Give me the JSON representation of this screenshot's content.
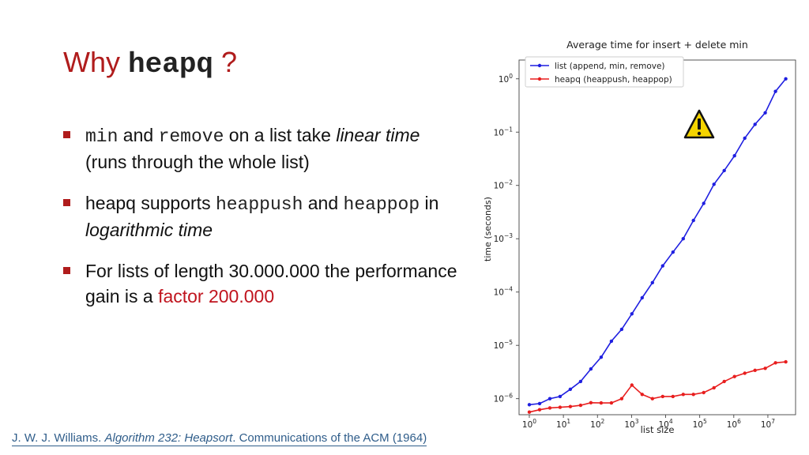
{
  "title": {
    "prefix": "Why ",
    "code": "heapq",
    "suffix": " ?"
  },
  "bullets": [
    {
      "parts": [
        {
          "text": "min",
          "style": "mono"
        },
        {
          "text": " and ",
          "style": "plain"
        },
        {
          "text": "remove",
          "style": "mono"
        },
        {
          "text": " on a list take ",
          "style": "plain"
        },
        {
          "text": "linear time",
          "style": "italic"
        },
        {
          "text": " (runs through the whole list)",
          "style": "plain"
        }
      ]
    },
    {
      "parts": [
        {
          "text": "heapq supports ",
          "style": "plain"
        },
        {
          "text": "heappush",
          "style": "mono"
        },
        {
          "text": " and ",
          "style": "plain"
        },
        {
          "text": "heappop",
          "style": "mono"
        },
        {
          "text": " in ",
          "style": "plain"
        },
        {
          "text": "logarithmic time",
          "style": "italic"
        }
      ]
    },
    {
      "parts": [
        {
          "text": "For lists of length 30.000.000 the performance gain is a ",
          "style": "plain"
        },
        {
          "text": "factor 200.000",
          "style": "accent"
        }
      ]
    }
  ],
  "citation": {
    "author": "J. W. J. Williams. ",
    "work": "Algorithm 232: Heapsort",
    "rest": ". Communications of the ACM (1964)"
  },
  "warning_icon": "warning-triangle-icon",
  "colors": {
    "title": "#b01c1c",
    "accent": "#c0141e",
    "list_series": "#1f1fe0",
    "heapq_series": "#e81e1e"
  },
  "chart_data": {
    "type": "line",
    "title": "Average time for insert + delete min",
    "xlabel": "list size",
    "ylabel": "time (seconds)",
    "xscale": "log",
    "yscale": "log",
    "xlim": [
      1,
      30000000
    ],
    "ylim": [
      1e-06,
      1
    ],
    "x_ticks": [
      {
        "value": 1,
        "base": "10",
        "exp": "0"
      },
      {
        "value": 10,
        "base": "10",
        "exp": "1"
      },
      {
        "value": 100,
        "base": "10",
        "exp": "2"
      },
      {
        "value": 1000,
        "base": "10",
        "exp": "3"
      },
      {
        "value": 10000,
        "base": "10",
        "exp": "4"
      },
      {
        "value": 100000,
        "base": "10",
        "exp": "5"
      },
      {
        "value": 1000000,
        "base": "10",
        "exp": "6"
      },
      {
        "value": 10000000,
        "base": "10",
        "exp": "7"
      }
    ],
    "y_ticks": [
      {
        "value": 1,
        "base": "10",
        "exp": "0"
      },
      {
        "value": 0.1,
        "base": "10",
        "exp": "−1"
      },
      {
        "value": 0.01,
        "base": "10",
        "exp": "−2"
      },
      {
        "value": 0.001,
        "base": "10",
        "exp": "−3"
      },
      {
        "value": 0.0001,
        "base": "10",
        "exp": "−4"
      },
      {
        "value": 1e-05,
        "base": "10",
        "exp": "−5"
      },
      {
        "value": 1e-06,
        "base": "10",
        "exp": "−6"
      }
    ],
    "grid": false,
    "legend_position": "top-left",
    "x": [
      1,
      2,
      4,
      8,
      16,
      32,
      64,
      128,
      256,
      512,
      1024,
      2048,
      4096,
      8192,
      16384,
      32768,
      65536,
      131072,
      262144,
      524288,
      1048576,
      2097152,
      4194304,
      8388608,
      16777216,
      33554432
    ],
    "series": [
      {
        "name": "list (append, min, remove)",
        "color": "#1f1fe0",
        "values": [
          7.7e-07,
          8.1e-07,
          1e-06,
          1.1e-06,
          1.5e-06,
          2.1e-06,
          3.6e-06,
          6e-06,
          1.2e-05,
          2e-05,
          3.9e-05,
          7.8e-05,
          0.00015,
          0.00031,
          0.00056,
          0.001,
          0.0022,
          0.0046,
          0.0105,
          0.019,
          0.036,
          0.077,
          0.14,
          0.23,
          0.58,
          1.0
        ]
      },
      {
        "name": "heapq (heappush, heappop)",
        "color": "#e81e1e",
        "values": [
          5.6e-07,
          6.2e-07,
          6.7e-07,
          6.9e-07,
          7.1e-07,
          7.5e-07,
          8.4e-07,
          8.3e-07,
          8.3e-07,
          1e-06,
          1.8e-06,
          1.2e-06,
          1e-06,
          1.1e-06,
          1.1e-06,
          1.2e-06,
          1.2e-06,
          1.3e-06,
          1.6e-06,
          2.1e-06,
          2.6e-06,
          3e-06,
          3.4e-06,
          3.7e-06,
          4.7e-06,
          4.9e-06
        ]
      }
    ]
  }
}
